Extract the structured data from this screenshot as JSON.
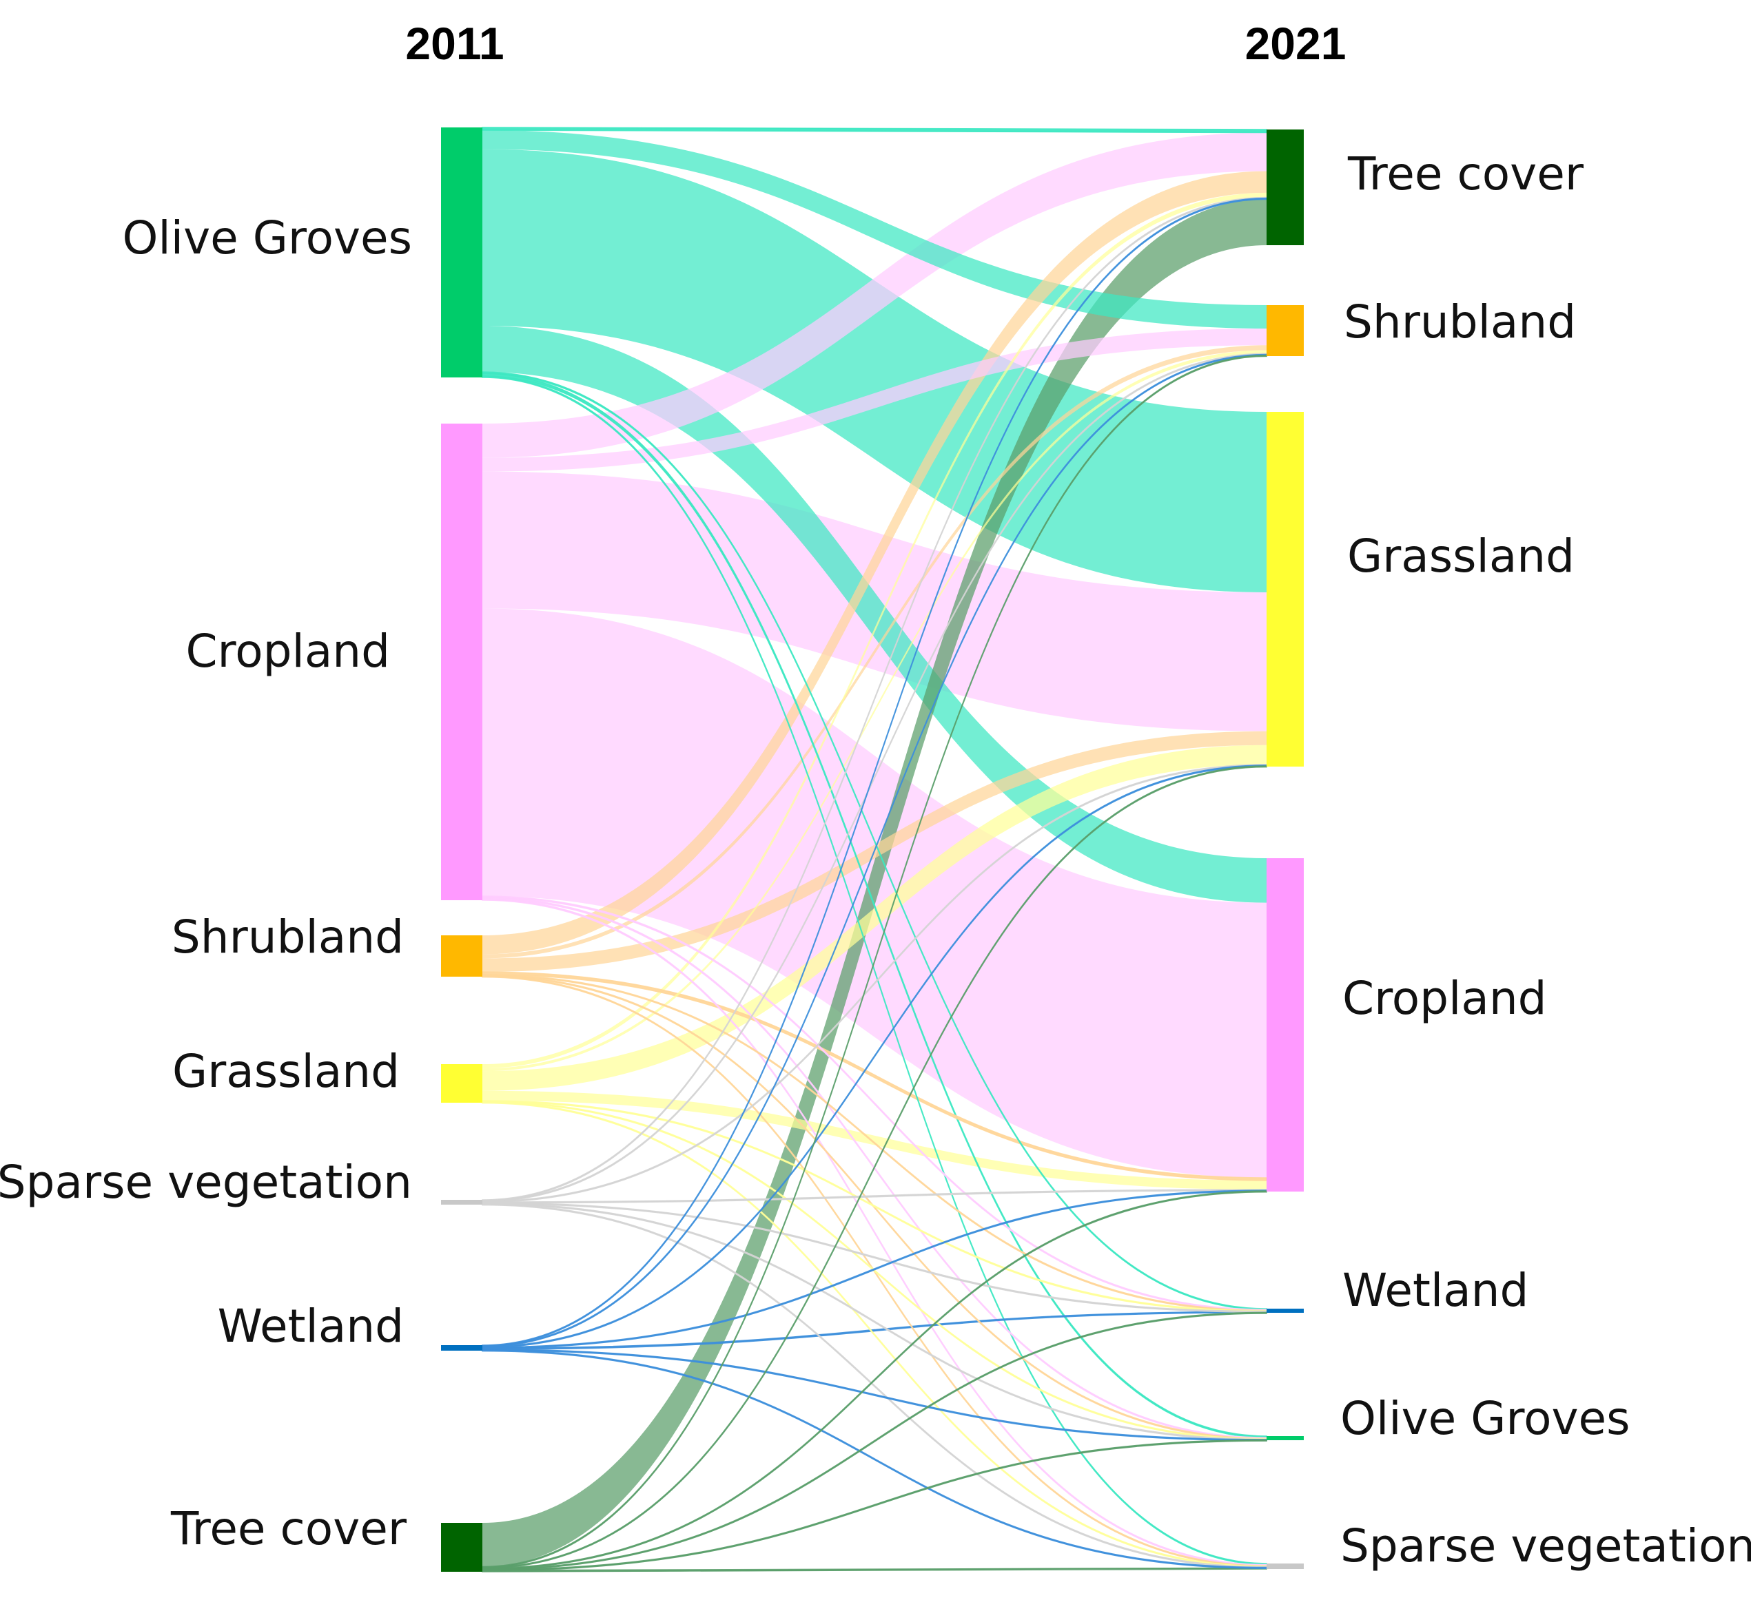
{
  "chart_data": {
    "type": "sankey",
    "columns": [
      "2011",
      "2021"
    ],
    "sources": [
      {
        "id": "og",
        "label": "Olive Groves",
        "color": "#00cc6a"
      },
      {
        "id": "cr",
        "label": "Cropland",
        "color": "#ff99ff"
      },
      {
        "id": "sh",
        "label": "Shrubland",
        "color": "#ffb800"
      },
      {
        "id": "gr",
        "label": "Grassland",
        "color": "#ffff33"
      },
      {
        "id": "sv",
        "label": "Sparse vegetation",
        "color": "#c8c8c8"
      },
      {
        "id": "wl",
        "label": "Wetland",
        "color": "#0070c0"
      },
      {
        "id": "tc",
        "label": "Tree cover",
        "color": "#006400"
      }
    ],
    "targets": [
      {
        "id": "tc",
        "label": "Tree cover",
        "color": "#006400"
      },
      {
        "id": "sh",
        "label": "Shrubland",
        "color": "#ffb800"
      },
      {
        "id": "gr",
        "label": "Grassland",
        "color": "#ffff33"
      },
      {
        "id": "cr",
        "label": "Cropland",
        "color": "#ff99ff"
      },
      {
        "id": "wl",
        "label": "Wetland",
        "color": "#0070c0"
      },
      {
        "id": "og",
        "label": "Olive Groves",
        "color": "#00cc6a"
      },
      {
        "id": "sv",
        "label": "Sparse vegetation",
        "color": "#c8c8c8"
      }
    ],
    "link_colors": {
      "og": "#3de8c2",
      "cr": "#ffccff",
      "sh": "#ffd699",
      "gr": "#ffff99",
      "sv": "#d4d4d4",
      "wl": "#3d8fdc",
      "tc": "#5a9e6a"
    },
    "flows": [
      {
        "from": "og",
        "to": "tc",
        "value": 4
      },
      {
        "from": "og",
        "to": "sh",
        "value": 28
      },
      {
        "from": "og",
        "to": "gr",
        "value": 260
      },
      {
        "from": "og",
        "to": "cr",
        "value": 68
      },
      {
        "from": "og",
        "to": "wl",
        "value": 2
      },
      {
        "from": "og",
        "to": "og",
        "value": 4
      },
      {
        "from": "og",
        "to": "sv",
        "value": 2
      },
      {
        "from": "cr",
        "to": "tc",
        "value": 50
      },
      {
        "from": "cr",
        "to": "sh",
        "value": 20
      },
      {
        "from": "cr",
        "to": "gr",
        "value": 200
      },
      {
        "from": "cr",
        "to": "cr",
        "value": 420
      },
      {
        "from": "cr",
        "to": "wl",
        "value": 2
      },
      {
        "from": "cr",
        "to": "og",
        "value": 2
      },
      {
        "from": "cr",
        "to": "sv",
        "value": 2
      },
      {
        "from": "sh",
        "to": "tc",
        "value": 28
      },
      {
        "from": "sh",
        "to": "sh",
        "value": 6
      },
      {
        "from": "sh",
        "to": "gr",
        "value": 20
      },
      {
        "from": "sh",
        "to": "cr",
        "value": 4
      },
      {
        "from": "sh",
        "to": "wl",
        "value": 1
      },
      {
        "from": "sh",
        "to": "og",
        "value": 1
      },
      {
        "from": "sh",
        "to": "sv",
        "value": 1
      },
      {
        "from": "gr",
        "to": "tc",
        "value": 6
      },
      {
        "from": "gr",
        "to": "sh",
        "value": 4
      },
      {
        "from": "gr",
        "to": "gr",
        "value": 28
      },
      {
        "from": "gr",
        "to": "cr",
        "value": 14
      },
      {
        "from": "gr",
        "to": "wl",
        "value": 1
      },
      {
        "from": "gr",
        "to": "og",
        "value": 1
      },
      {
        "from": "gr",
        "to": "sv",
        "value": 1
      },
      {
        "from": "sv",
        "to": "tc",
        "value": 1
      },
      {
        "from": "sv",
        "to": "sh",
        "value": 1
      },
      {
        "from": "sv",
        "to": "gr",
        "value": 1
      },
      {
        "from": "sv",
        "to": "cr",
        "value": 1
      },
      {
        "from": "sv",
        "to": "wl",
        "value": 1
      },
      {
        "from": "sv",
        "to": "og",
        "value": 1
      },
      {
        "from": "sv",
        "to": "sv",
        "value": 1
      },
      {
        "from": "wl",
        "to": "tc",
        "value": 1
      },
      {
        "from": "wl",
        "to": "sh",
        "value": 1
      },
      {
        "from": "wl",
        "to": "gr",
        "value": 1
      },
      {
        "from": "wl",
        "to": "cr",
        "value": 1
      },
      {
        "from": "wl",
        "to": "wl",
        "value": 2
      },
      {
        "from": "wl",
        "to": "og",
        "value": 1
      },
      {
        "from": "wl",
        "to": "sv",
        "value": 1
      },
      {
        "from": "tc",
        "to": "tc",
        "value": 60
      },
      {
        "from": "tc",
        "to": "sh",
        "value": 1
      },
      {
        "from": "tc",
        "to": "gr",
        "value": 1
      },
      {
        "from": "tc",
        "to": "cr",
        "value": 1
      },
      {
        "from": "tc",
        "to": "wl",
        "value": 1
      },
      {
        "from": "tc",
        "to": "og",
        "value": 1
      },
      {
        "from": "tc",
        "to": "sv",
        "value": 2
      }
    ]
  }
}
